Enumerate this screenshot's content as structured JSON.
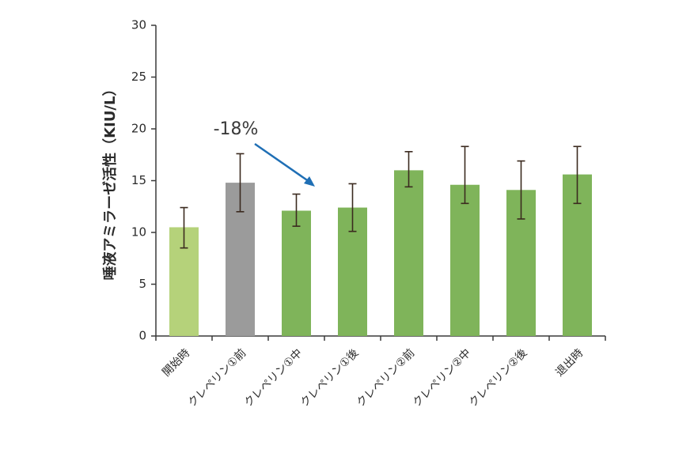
{
  "chart_data": {
    "type": "bar",
    "title": "",
    "xlabel": "",
    "ylabel": "唾液アミラーゼ活性（KIU/L）",
    "ylim": [
      0,
      30
    ],
    "yticks": [
      0,
      5,
      10,
      15,
      20,
      25,
      30
    ],
    "grid": false,
    "categories": [
      "開始時",
      "クレペリン①前",
      "クレペリン①中",
      "クレペリン①後",
      "クレペリン②前",
      "クレペリン②中",
      "クレペリン②後",
      "退出時"
    ],
    "values": [
      10.5,
      14.8,
      12.1,
      12.4,
      16.0,
      14.6,
      14.1,
      15.6
    ],
    "error_low": [
      8.5,
      12.0,
      10.6,
      10.1,
      14.4,
      12.8,
      11.3,
      12.8
    ],
    "error_high": [
      12.4,
      17.6,
      13.7,
      14.7,
      17.8,
      18.3,
      16.9,
      18.3
    ],
    "colors": [
      "#b5d27a",
      "#9b9b9b",
      "#7fb45a",
      "#7fb45a",
      "#7fb45a",
      "#7fb45a",
      "#7fb45a",
      "#7fb45a"
    ],
    "error_color": "#3b2a1f",
    "annotation": {
      "text": "-18%",
      "arrow_color": "#1f6fb5"
    }
  }
}
